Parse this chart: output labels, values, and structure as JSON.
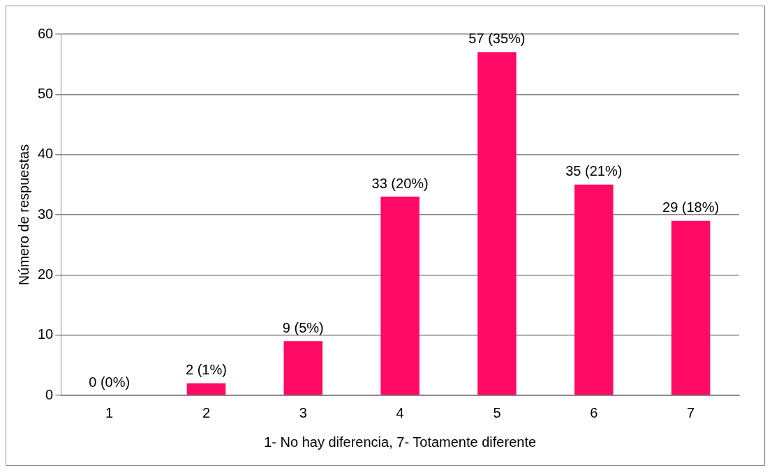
{
  "chart_data": {
    "type": "bar",
    "categories": [
      "1",
      "2",
      "3",
      "4",
      "5",
      "6",
      "7"
    ],
    "values": [
      0,
      2,
      9,
      33,
      57,
      35,
      29
    ],
    "value_labels": [
      "0 (0%)",
      "2 (1%)",
      "9 (5%)",
      "33 (20%)",
      "57 (35%)",
      "35 (21%)",
      "29 (18%)"
    ],
    "color": "#ff0a64",
    "xlabel": "1- No hay diferencia, 7- Totamente diferente",
    "ylabel": "Número de respuestas",
    "ylim": [
      0,
      60
    ],
    "yticks": [
      0,
      10,
      20,
      30,
      40,
      50,
      60
    ],
    "grid": "y"
  }
}
